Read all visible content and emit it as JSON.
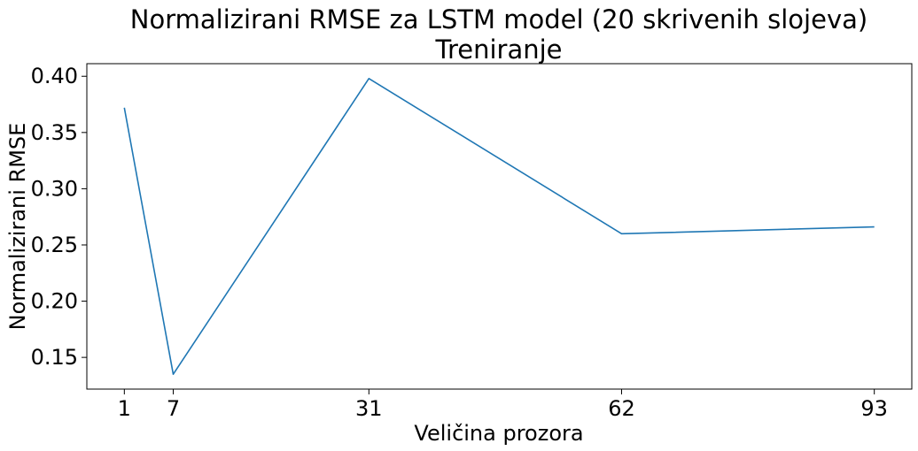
{
  "chart_data": {
    "type": "line",
    "title": [
      "Normalizirani RMSE za LSTM model (20 skrivenih slojeva)",
      "Treniranje"
    ],
    "xlabel": "Veličina prozora",
    "ylabel": "Normalizirani RMSE",
    "x": [
      1,
      7,
      31,
      62,
      93
    ],
    "series": [
      {
        "values": [
          0.372,
          0.135,
          0.398,
          0.26,
          0.266
        ],
        "color": "#1f77b4"
      }
    ],
    "xticks": [
      1,
      7,
      31,
      62,
      93
    ],
    "yticks": [
      0.15,
      0.2,
      0.25,
      0.3,
      0.35,
      0.4
    ],
    "ytick_labels": [
      "0.15",
      "0.20",
      "0.25",
      "0.30",
      "0.35",
      "0.40"
    ],
    "xlim": [
      -3.6,
      97.6
    ],
    "ylim": [
      0.1218,
      0.4112
    ],
    "grid": false,
    "legend": false
  }
}
